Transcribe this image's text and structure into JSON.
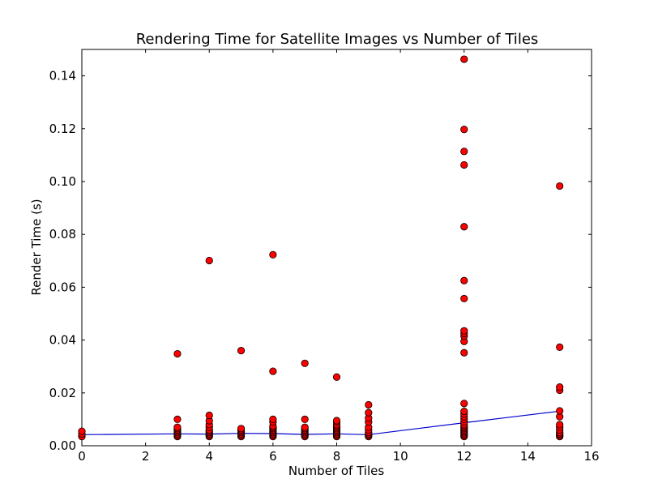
{
  "chart_data": {
    "type": "scatter",
    "title": "Rendering Time for Satellite Images vs Number of Tiles",
    "xlabel": "Number of Tiles",
    "ylabel": "Render Time (s)",
    "xlim": [
      0,
      16
    ],
    "ylim": [
      0,
      0.15
    ],
    "xticks": [
      0,
      2,
      4,
      6,
      8,
      10,
      12,
      14,
      16
    ],
    "yticks": [
      0.0,
      0.02,
      0.04,
      0.06,
      0.08,
      0.1,
      0.12,
      0.14
    ],
    "xtick_labels": [
      "0",
      "2",
      "4",
      "6",
      "8",
      "10",
      "12",
      "14",
      "16"
    ],
    "ytick_labels": [
      "0.00",
      "0.02",
      "0.04",
      "0.06",
      "0.08",
      "0.10",
      "0.12",
      "0.14"
    ],
    "grid": false,
    "series": [
      {
        "kind": "scatter",
        "color": "#ff0000",
        "edge_color": "#000000",
        "points": [
          [
            0,
            0.0035
          ],
          [
            0,
            0.0045
          ],
          [
            0,
            0.0055
          ],
          [
            3,
            0.0035
          ],
          [
            3,
            0.004
          ],
          [
            3,
            0.0045
          ],
          [
            3,
            0.005
          ],
          [
            3,
            0.0055
          ],
          [
            3,
            0.006
          ],
          [
            3,
            0.0065
          ],
          [
            3,
            0.007
          ],
          [
            3,
            0.01
          ],
          [
            3,
            0.0348
          ],
          [
            4,
            0.0035
          ],
          [
            4,
            0.004
          ],
          [
            4,
            0.0045
          ],
          [
            4,
            0.005
          ],
          [
            4,
            0.0055
          ],
          [
            4,
            0.006
          ],
          [
            4,
            0.007
          ],
          [
            4,
            0.008
          ],
          [
            4,
            0.0095
          ],
          [
            4,
            0.0115
          ],
          [
            4,
            0.0701
          ],
          [
            5,
            0.0035
          ],
          [
            5,
            0.004
          ],
          [
            5,
            0.0045
          ],
          [
            5,
            0.005
          ],
          [
            5,
            0.0055
          ],
          [
            5,
            0.006
          ],
          [
            5,
            0.0065
          ],
          [
            5,
            0.036
          ],
          [
            6,
            0.0035
          ],
          [
            6,
            0.004
          ],
          [
            6,
            0.0045
          ],
          [
            6,
            0.005
          ],
          [
            6,
            0.0055
          ],
          [
            6,
            0.006
          ],
          [
            6,
            0.0065
          ],
          [
            6,
            0.007
          ],
          [
            6,
            0.0075
          ],
          [
            6,
            0.009
          ],
          [
            6,
            0.01
          ],
          [
            6,
            0.0282
          ],
          [
            6,
            0.0723
          ],
          [
            7,
            0.0035
          ],
          [
            7,
            0.004
          ],
          [
            7,
            0.0045
          ],
          [
            7,
            0.005
          ],
          [
            7,
            0.0055
          ],
          [
            7,
            0.006
          ],
          [
            7,
            0.0065
          ],
          [
            7,
            0.007
          ],
          [
            7,
            0.01
          ],
          [
            7,
            0.0312
          ],
          [
            8,
            0.0035
          ],
          [
            8,
            0.004
          ],
          [
            8,
            0.0045
          ],
          [
            8,
            0.005
          ],
          [
            8,
            0.0055
          ],
          [
            8,
            0.006
          ],
          [
            8,
            0.0065
          ],
          [
            8,
            0.007
          ],
          [
            8,
            0.0075
          ],
          [
            8,
            0.008
          ],
          [
            8,
            0.009
          ],
          [
            8,
            0.0095
          ],
          [
            8,
            0.026
          ],
          [
            9,
            0.0035
          ],
          [
            9,
            0.004
          ],
          [
            9,
            0.0045
          ],
          [
            9,
            0.005
          ],
          [
            9,
            0.006
          ],
          [
            9,
            0.007
          ],
          [
            9,
            0.009
          ],
          [
            9,
            0.0105
          ],
          [
            9,
            0.0125
          ],
          [
            9,
            0.0155
          ],
          [
            12,
            0.0035
          ],
          [
            12,
            0.004
          ],
          [
            12,
            0.0045
          ],
          [
            12,
            0.005
          ],
          [
            12,
            0.0055
          ],
          [
            12,
            0.006
          ],
          [
            12,
            0.0065
          ],
          [
            12,
            0.007
          ],
          [
            12,
            0.0075
          ],
          [
            12,
            0.008
          ],
          [
            12,
            0.009
          ],
          [
            12,
            0.01
          ],
          [
            12,
            0.011
          ],
          [
            12,
            0.012
          ],
          [
            12,
            0.013
          ],
          [
            12,
            0.016
          ],
          [
            12,
            0.0352
          ],
          [
            12,
            0.0395
          ],
          [
            12,
            0.0415
          ],
          [
            12,
            0.0425
          ],
          [
            12,
            0.0435
          ],
          [
            12,
            0.0557
          ],
          [
            12,
            0.0625
          ],
          [
            12,
            0.0829
          ],
          [
            12,
            0.1063
          ],
          [
            12,
            0.1114
          ],
          [
            12,
            0.1197
          ],
          [
            12,
            0.1463
          ],
          [
            15,
            0.0035
          ],
          [
            15,
            0.004
          ],
          [
            15,
            0.0045
          ],
          [
            15,
            0.005
          ],
          [
            15,
            0.006
          ],
          [
            15,
            0.007
          ],
          [
            15,
            0.008
          ],
          [
            15,
            0.011
          ],
          [
            15,
            0.0132
          ],
          [
            15,
            0.021
          ],
          [
            15,
            0.0222
          ],
          [
            15,
            0.0373
          ],
          [
            15,
            0.0983
          ]
        ]
      },
      {
        "kind": "line",
        "color": "#0000cc",
        "x": [
          0,
          3,
          4,
          5,
          6,
          7,
          8,
          9,
          12,
          15
        ],
        "y": [
          0.0042,
          0.0045,
          0.0044,
          0.0047,
          0.0046,
          0.0043,
          0.0045,
          0.0042,
          0.0087,
          0.0131
        ]
      }
    ]
  }
}
